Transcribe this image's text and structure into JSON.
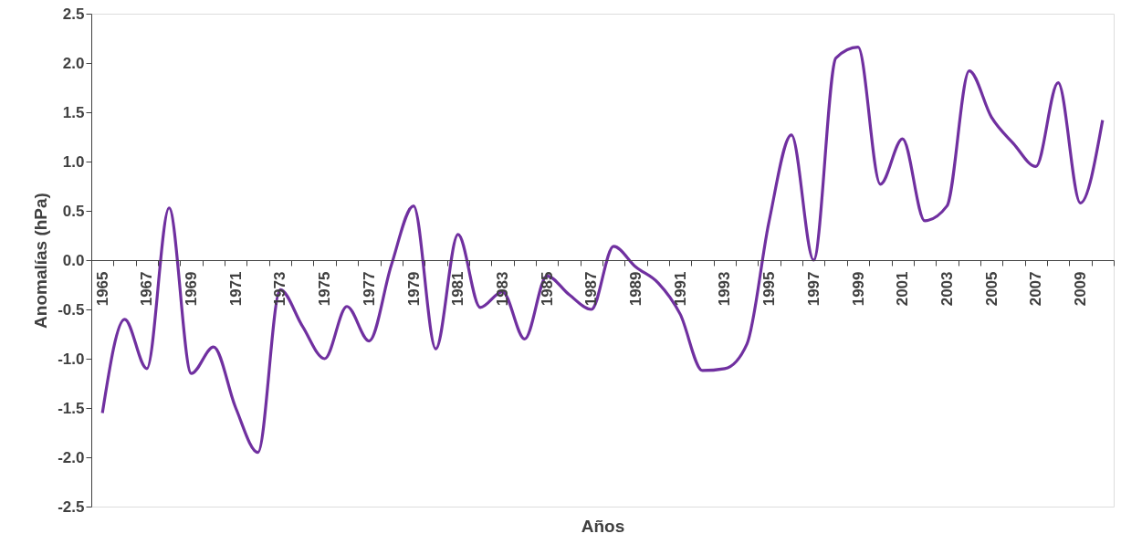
{
  "chart_data": {
    "type": "line",
    "xlabel": "Años",
    "ylabel": "Anomalías (hPa)",
    "categories": [
      "1965",
      null,
      "1967",
      null,
      "1969",
      null,
      "1971",
      null,
      "1973",
      null,
      "1975",
      null,
      "1977",
      null,
      "1979",
      null,
      "1981",
      null,
      "1983",
      null,
      "1985",
      null,
      "1987",
      null,
      "1989",
      null,
      "1991",
      null,
      "1993",
      null,
      "1995",
      null,
      "1997",
      null,
      "1999",
      null,
      "2001",
      null,
      "2003",
      null,
      "2005",
      null,
      "2007",
      null,
      "2009",
      null
    ],
    "series": [
      {
        "color": "#7030a0",
        "values": [
          -1.55,
          -0.6,
          -1.1,
          0.53,
          -1.15,
          -0.88,
          -1.5,
          -1.95,
          -0.3,
          -0.67,
          -1.0,
          -0.47,
          -0.82,
          -0.05,
          0.55,
          -0.9,
          0.26,
          -0.48,
          -0.32,
          -0.8,
          -0.16,
          -0.35,
          -0.5,
          0.14,
          -0.07,
          -0.23,
          -0.55,
          -1.12,
          -1.1,
          -0.85,
          0.4,
          1.27,
          0.0,
          2.05,
          2.16,
          0.77,
          1.23,
          0.4,
          0.55,
          1.92,
          1.45,
          1.18,
          0.95,
          1.8,
          0.58,
          1.42
        ]
      }
    ],
    "ylim": [
      -2.5,
      2.5
    ],
    "yticks": [
      -2.5,
      {
        "value": -2,
        "label": "-2.0"
      },
      -1.5,
      {
        "value": -1,
        "label": "-1.0"
      },
      -0.5,
      {
        "value": 0,
        "label": "0.0"
      },
      0.5,
      {
        "value": 1,
        "label": "1.0"
      },
      1.5,
      {
        "value": 2,
        "label": "2.0"
      },
      2.5
    ],
    "grid": false,
    "marker": "none",
    "line_style": "solid"
  }
}
